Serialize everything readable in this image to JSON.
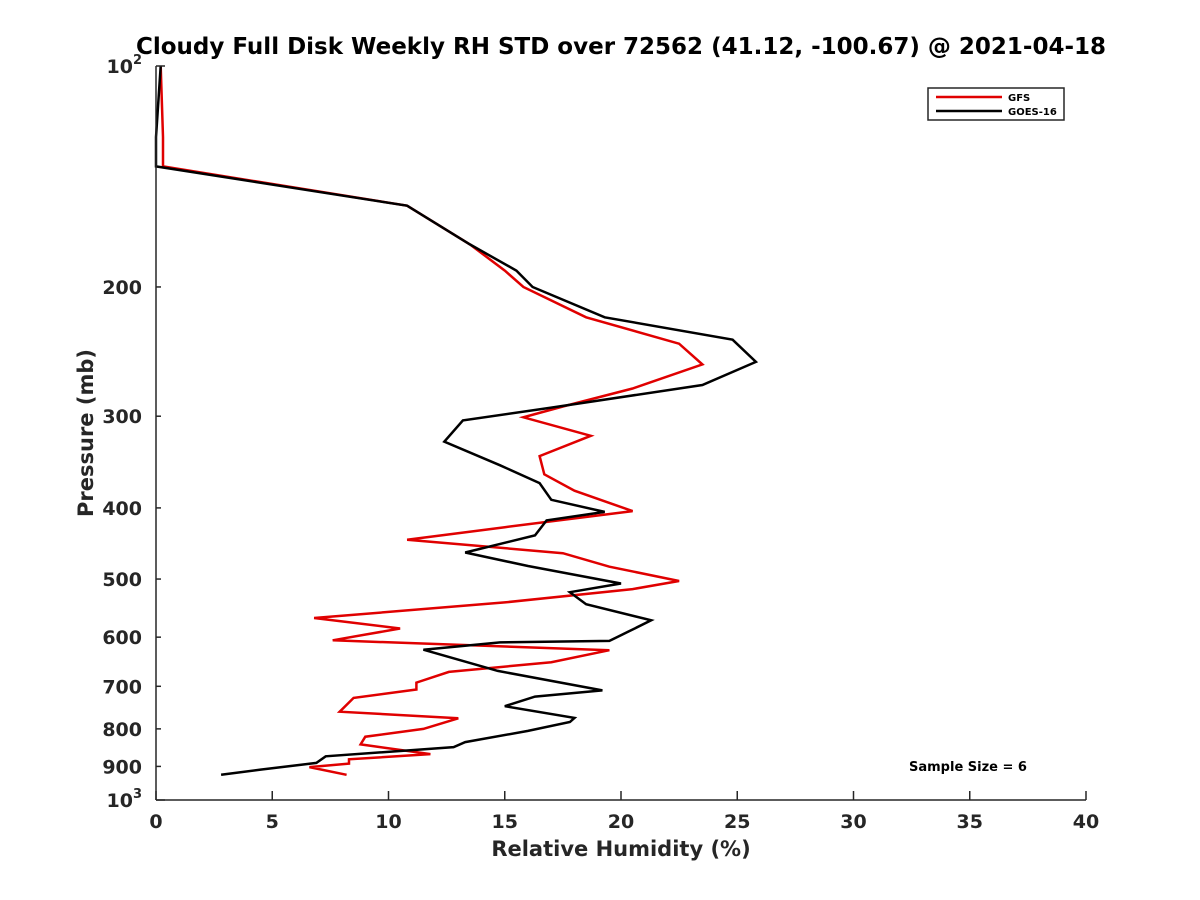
{
  "chart_data": {
    "type": "line",
    "title": "Cloudy Full Disk Weekly RH STD over 72562 (41.12, -100.67) @ 2021-04-18",
    "xlabel": "Relative Humidity (%)",
    "ylabel": "Pressure (mb)",
    "xlim": [
      0,
      40
    ],
    "ylim": [
      100,
      1000
    ],
    "y_scale": "log",
    "y_reversed": true,
    "x_ticks": [
      "0",
      "5",
      "10",
      "15",
      "20",
      "25",
      "30",
      "35",
      "40"
    ],
    "y_ticks": [
      {
        "value": 100,
        "base": "10",
        "exp": "2"
      },
      {
        "value": 200,
        "label": "200"
      },
      {
        "value": 300,
        "label": "300"
      },
      {
        "value": 400,
        "label": "400"
      },
      {
        "value": 500,
        "label": "500"
      },
      {
        "value": 600,
        "label": "600"
      },
      {
        "value": 700,
        "label": "700"
      },
      {
        "value": 800,
        "label": "800"
      },
      {
        "value": 900,
        "label": "900"
      },
      {
        "value": 1000,
        "base": "10",
        "exp": "3"
      }
    ],
    "legend": {
      "position": "top-right"
    },
    "annotation": "Sample Size = 6",
    "series": [
      {
        "name": "GFS",
        "color": "#e00000",
        "points": [
          [
            0.2,
            100
          ],
          [
            0.3,
            125
          ],
          [
            0.3,
            137
          ],
          [
            10.8,
            155
          ],
          [
            13.5,
            175
          ],
          [
            15.0,
            190
          ],
          [
            15.8,
            200
          ],
          [
            18.5,
            220
          ],
          [
            22.5,
            239
          ],
          [
            23.5,
            255
          ],
          [
            20.5,
            275
          ],
          [
            17.5,
            291
          ],
          [
            15.8,
            301
          ],
          [
            18.7,
            319
          ],
          [
            16.5,
            340
          ],
          [
            16.7,
            360
          ],
          [
            18.0,
            379
          ],
          [
            20.5,
            404
          ],
          [
            15.0,
            425
          ],
          [
            10.8,
            442
          ],
          [
            17.5,
            461
          ],
          [
            19.5,
            481
          ],
          [
            22.5,
            503
          ],
          [
            20.5,
            516
          ],
          [
            15.0,
            538
          ],
          [
            6.8,
            565
          ],
          [
            10.5,
            584
          ],
          [
            7.6,
            606
          ],
          [
            19.5,
            625
          ],
          [
            17.0,
            649
          ],
          [
            12.6,
            669
          ],
          [
            11.2,
            692
          ],
          [
            11.2,
            707
          ],
          [
            8.5,
            726
          ],
          [
            7.9,
            758
          ],
          [
            13.0,
            774
          ],
          [
            11.5,
            800
          ],
          [
            9.0,
            820
          ],
          [
            8.8,
            840
          ],
          [
            11.8,
            866
          ],
          [
            8.3,
            880
          ],
          [
            8.3,
            892
          ],
          [
            6.6,
            902
          ],
          [
            8.2,
            924
          ]
        ]
      },
      {
        "name": "GOES-16",
        "color": "#000000",
        "points": [
          [
            0.2,
            100
          ],
          [
            0.0,
            125
          ],
          [
            0.0,
            137
          ],
          [
            10.8,
            155
          ],
          [
            13.5,
            175
          ],
          [
            15.5,
            190
          ],
          [
            16.2,
            200
          ],
          [
            19.3,
            220
          ],
          [
            24.8,
            236
          ],
          [
            25.8,
            253
          ],
          [
            23.5,
            272
          ],
          [
            17.0,
            292
          ],
          [
            13.2,
            304
          ],
          [
            12.4,
            325
          ],
          [
            14.8,
            350
          ],
          [
            16.5,
            370
          ],
          [
            17.0,
            390
          ],
          [
            19.3,
            405
          ],
          [
            16.8,
            416
          ],
          [
            16.3,
            436
          ],
          [
            13.3,
            460
          ],
          [
            16.0,
            480
          ],
          [
            20.0,
            507
          ],
          [
            17.8,
            521
          ],
          [
            18.5,
            541
          ],
          [
            21.3,
            569
          ],
          [
            20.3,
            590
          ],
          [
            19.5,
            607
          ],
          [
            14.8,
            610
          ],
          [
            11.5,
            624
          ],
          [
            14.7,
            667
          ],
          [
            19.2,
            709
          ],
          [
            16.3,
            723
          ],
          [
            15.0,
            745
          ],
          [
            18.0,
            773
          ],
          [
            17.8,
            783
          ],
          [
            16.0,
            805
          ],
          [
            13.3,
            834
          ],
          [
            12.8,
            847
          ],
          [
            7.3,
            872
          ],
          [
            6.9,
            890
          ],
          [
            4.5,
            909
          ],
          [
            2.8,
            924
          ]
        ]
      }
    ]
  }
}
